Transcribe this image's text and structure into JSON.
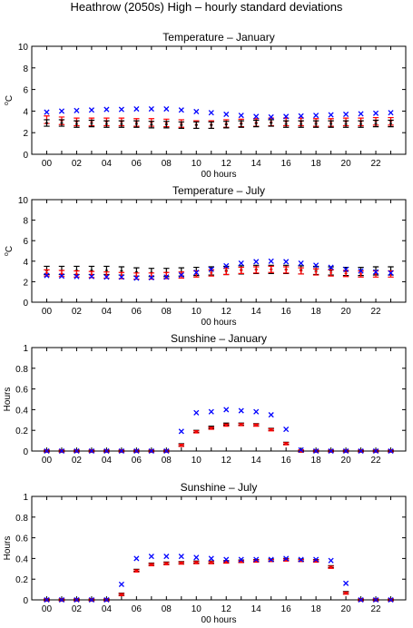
{
  "figure_title": "Heathrow (2050s) High – hourly standard deviations",
  "colors": {
    "red": "#ff0000",
    "black": "#000000",
    "blue": "#0000ff",
    "axis": "#000000"
  },
  "chart_data": [
    {
      "type": "scatter",
      "title": "Temperature – January",
      "xlabel": "00 hours",
      "ylabel": "°C",
      "ylabel_parts": {
        "degree": "o",
        "unit": "C"
      },
      "ylim": [
        0,
        10
      ],
      "yticks": [
        "0",
        "2",
        "4",
        "6",
        "8",
        "10"
      ],
      "xticks": [
        "00",
        "02",
        "04",
        "06",
        "08",
        "10",
        "12",
        "14",
        "16",
        "18",
        "20",
        "22"
      ],
      "grid": false,
      "series": [
        {
          "marker": "errorbar",
          "color": "red",
          "values": [
            3.2,
            3.1,
            3.0,
            3.0,
            3.0,
            3.0,
            2.95,
            2.95,
            2.9,
            2.85,
            2.75,
            2.75,
            2.85,
            2.9,
            2.95,
            3.0,
            3.0,
            3.0,
            2.95,
            2.95,
            3.0,
            3.0,
            3.05,
            3.05
          ],
          "err": 0.35
        },
        {
          "marker": "errorbar",
          "color": "black",
          "values": [
            2.9,
            2.9,
            2.8,
            2.85,
            2.8,
            2.8,
            2.8,
            2.75,
            2.75,
            2.7,
            2.7,
            2.7,
            2.75,
            2.8,
            2.85,
            2.9,
            2.8,
            2.8,
            2.8,
            2.8,
            2.8,
            2.8,
            2.85,
            2.85
          ],
          "err": 0.3
        },
        {
          "marker": "x",
          "color": "blue",
          "values": [
            3.9,
            4.0,
            4.05,
            4.1,
            4.15,
            4.15,
            4.2,
            4.2,
            4.2,
            4.1,
            3.95,
            3.85,
            3.7,
            3.6,
            3.5,
            3.45,
            3.5,
            3.55,
            3.6,
            3.65,
            3.7,
            3.75,
            3.8,
            3.85
          ]
        }
      ]
    },
    {
      "type": "scatter",
      "title": "Temperature – July",
      "xlabel": "00 hours",
      "ylabel": "°C",
      "ylabel_parts": {
        "degree": "o",
        "unit": "C"
      },
      "ylim": [
        0,
        10
      ],
      "yticks": [
        "0",
        "2",
        "4",
        "6",
        "8",
        "10"
      ],
      "xticks": [
        "00",
        "02",
        "04",
        "06",
        "08",
        "10",
        "12",
        "14",
        "16",
        "18",
        "20",
        "22"
      ],
      "grid": false,
      "series": [
        {
          "marker": "errorbar",
          "color": "black",
          "values": [
            3.1,
            3.1,
            3.1,
            3.1,
            3.1,
            3.05,
            2.95,
            2.9,
            2.9,
            2.95,
            3.0,
            3.05,
            3.1,
            3.15,
            3.2,
            3.2,
            3.2,
            3.15,
            3.1,
            3.05,
            3.0,
            3.0,
            3.05,
            3.05
          ],
          "err": 0.4
        },
        {
          "marker": "errorbar",
          "color": "red",
          "values": [
            2.85,
            2.8,
            2.75,
            2.7,
            2.65,
            2.6,
            2.55,
            2.55,
            2.6,
            2.65,
            2.75,
            2.85,
            3.0,
            3.1,
            3.15,
            3.2,
            3.15,
            3.05,
            2.95,
            2.85,
            2.8,
            2.75,
            2.75,
            2.75
          ],
          "err": 0.3
        },
        {
          "marker": "x",
          "color": "blue",
          "values": [
            2.6,
            2.55,
            2.5,
            2.5,
            2.45,
            2.45,
            2.35,
            2.4,
            2.45,
            2.65,
            2.9,
            3.2,
            3.55,
            3.8,
            3.95,
            4.0,
            3.95,
            3.8,
            3.6,
            3.4,
            3.2,
            3.05,
            2.95,
            2.85
          ]
        }
      ]
    },
    {
      "type": "scatter",
      "title": "Sunshine – January",
      "xlabel": "",
      "ylabel": "Hours",
      "ylim": [
        0,
        1
      ],
      "yticks": [
        "0",
        "0.2",
        "0.4",
        "0.6",
        "0.8",
        "1"
      ],
      "xticks": [
        "00",
        "02",
        "04",
        "06",
        "08",
        "10",
        "12",
        "14",
        "16",
        "18",
        "20",
        "22"
      ],
      "grid": false,
      "series": [
        {
          "marker": "errorbar",
          "color": "black",
          "values": [
            0,
            0,
            0,
            0,
            0,
            0,
            0,
            0,
            0,
            0.06,
            0.19,
            0.23,
            0.26,
            0.26,
            0.255,
            0.21,
            0.075,
            0,
            0,
            0,
            0,
            0,
            0,
            0
          ],
          "err": 0.01
        },
        {
          "marker": "errorbar",
          "color": "red",
          "values": [
            0,
            0,
            0,
            0,
            0,
            0,
            0,
            0,
            0,
            0.055,
            0.185,
            0.22,
            0.25,
            0.255,
            0.25,
            0.205,
            0.07,
            0,
            0,
            0,
            0,
            0,
            0,
            0
          ],
          "err": 0.01
        },
        {
          "marker": "x",
          "color": "blue",
          "values": [
            0,
            0,
            0,
            0,
            0,
            0,
            0,
            0,
            0,
            0.19,
            0.37,
            0.38,
            0.4,
            0.39,
            0.38,
            0.35,
            0.21,
            0.01,
            0,
            0,
            0,
            0,
            0,
            0
          ]
        }
      ]
    },
    {
      "type": "scatter",
      "title": "Sunshine – July",
      "xlabel": "00 hours",
      "ylabel": "Hours",
      "ylim": [
        0,
        1
      ],
      "yticks": [
        "0",
        "0.2",
        "0.4",
        "0.6",
        "0.8",
        "1"
      ],
      "xticks": [
        "00",
        "02",
        "04",
        "06",
        "08",
        "10",
        "12",
        "14",
        "16",
        "18",
        "20",
        "22"
      ],
      "grid": false,
      "series": [
        {
          "marker": "errorbar",
          "color": "black",
          "values": [
            0,
            0,
            0,
            0,
            0,
            0.055,
            0.285,
            0.345,
            0.355,
            0.36,
            0.365,
            0.365,
            0.37,
            0.375,
            0.38,
            0.385,
            0.39,
            0.385,
            0.38,
            0.32,
            0.07,
            0,
            0,
            0
          ],
          "err": 0.01
        },
        {
          "marker": "errorbar",
          "color": "red",
          "values": [
            0,
            0,
            0,
            0,
            0,
            0.05,
            0.28,
            0.34,
            0.35,
            0.355,
            0.36,
            0.36,
            0.365,
            0.37,
            0.375,
            0.38,
            0.385,
            0.38,
            0.375,
            0.315,
            0.065,
            0,
            0,
            0
          ],
          "err": 0.01
        },
        {
          "marker": "x",
          "color": "blue",
          "values": [
            0,
            0,
            0,
            0,
            0,
            0.15,
            0.4,
            0.42,
            0.42,
            0.42,
            0.41,
            0.4,
            0.39,
            0.39,
            0.39,
            0.39,
            0.4,
            0.39,
            0.39,
            0.38,
            0.16,
            0,
            0,
            0
          ]
        }
      ]
    }
  ]
}
